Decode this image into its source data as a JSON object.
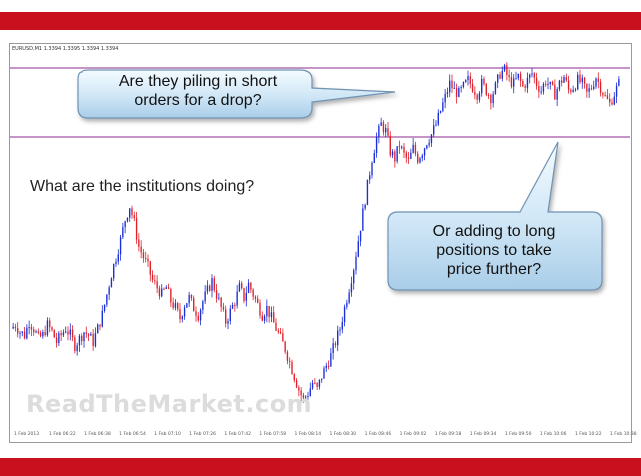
{
  "chart_header": "EURUSD,M1 1.3394 1.3395 1.3394 1.3394",
  "question": "What are the institutions doing?",
  "callouts": {
    "short_line1": "Are they piling in short",
    "short_line2": "orders for a drop?",
    "long_line1": "Or adding to long",
    "long_line2": "positions to take",
    "long_line3": "price further?"
  },
  "watermark": "ReadTheMarket.com",
  "time_axis": [
    "1 Feb 2013",
    "1 Feb 06:22",
    "1 Feb 06:38",
    "1 Feb 06:54",
    "1 Feb 07:10",
    "1 Feb 07:26",
    "1 Feb 07:42",
    "1 Feb 07:58",
    "1 Feb 08:14",
    "1 Feb 08:30",
    "1 Feb 08:46",
    "1 Feb 09:02",
    "1 Feb 09:18",
    "1 Feb 09:34",
    "1 Feb 09:50",
    "1 Feb 10:06",
    "1 Feb 10:22",
    "1 Feb 10:38"
  ],
  "colors": {
    "bull": "#1a2fd6",
    "bear": "#e0202a",
    "level_line": "#8e2a8e",
    "brand_red": "#c8101e"
  },
  "chart_data": {
    "type": "candlestick",
    "price_path": [
      0.24,
      0.25,
      0.23,
      0.22,
      0.26,
      0.24,
      0.21,
      0.22,
      0.25,
      0.23,
      0.2,
      0.22,
      0.24,
      0.22,
      0.19,
      0.21,
      0.23,
      0.22,
      0.2,
      0.24,
      0.28,
      0.34,
      0.4,
      0.45,
      0.5,
      0.56,
      0.6,
      0.55,
      0.48,
      0.45,
      0.42,
      0.38,
      0.36,
      0.34,
      0.36,
      0.32,
      0.3,
      0.27,
      0.31,
      0.33,
      0.3,
      0.28,
      0.32,
      0.35,
      0.38,
      0.34,
      0.3,
      0.26,
      0.29,
      0.32,
      0.36,
      0.33,
      0.37,
      0.34,
      0.31,
      0.28,
      0.3,
      0.27,
      0.24,
      0.21,
      0.18,
      0.14,
      0.1,
      0.06,
      0.03,
      0.05,
      0.08,
      0.06,
      0.1,
      0.13,
      0.16,
      0.2,
      0.24,
      0.3,
      0.36,
      0.42,
      0.5,
      0.58,
      0.66,
      0.74,
      0.8,
      0.84,
      0.82,
      0.76,
      0.74,
      0.78,
      0.75,
      0.73,
      0.77,
      0.74,
      0.76,
      0.79,
      0.81,
      0.84,
      0.88,
      0.92,
      0.96,
      0.94,
      0.93,
      0.95,
      0.97,
      0.95,
      0.93,
      0.96,
      0.94,
      0.92,
      0.95,
      0.99,
      1.0,
      0.97,
      0.96,
      0.98,
      0.95,
      0.97,
      0.99,
      0.96,
      0.94,
      0.97,
      0.95,
      0.93,
      0.96,
      0.98,
      0.94,
      0.95,
      0.97,
      0.96,
      0.93,
      0.95,
      0.98,
      0.95,
      0.92,
      0.9,
      0.93,
      0.96
    ],
    "resistance_level": 1.0,
    "support_level": 0.88
  }
}
